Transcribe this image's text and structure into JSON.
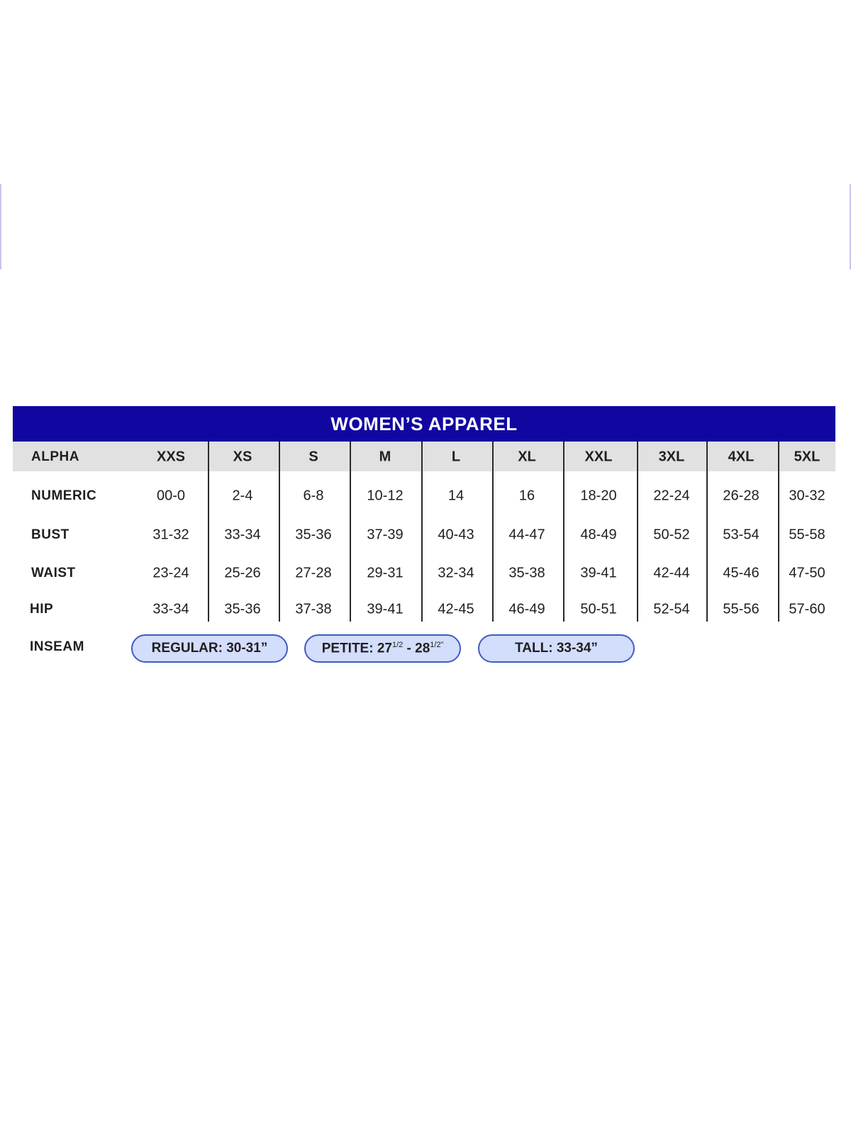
{
  "title": "WOMEN’S APPAREL",
  "columns": [
    "XXS",
    "XS",
    "S",
    "M",
    "L",
    "XL",
    "XXL",
    "3XL",
    "4XL",
    "5XL"
  ],
  "rows": [
    {
      "label": "ALPHA",
      "values": [
        "XXS",
        "XS",
        "S",
        "M",
        "L",
        "XL",
        "XXL",
        "3XL",
        "4XL",
        "5XL"
      ]
    },
    {
      "label": "NUMERIC",
      "values": [
        "00-0",
        "2-4",
        "6-8",
        "10-12",
        "14",
        "16",
        "18-20",
        "22-24",
        "26-28",
        "30-32"
      ]
    },
    {
      "label": "BUST",
      "values": [
        "31-32",
        "33-34",
        "35-36",
        "37-39",
        "40-43",
        "44-47",
        "48-49",
        "50-52",
        "53-54",
        "55-58"
      ]
    },
    {
      "label": "WAIST",
      "values": [
        "23-24",
        "25-26",
        "27-28",
        "29-31",
        "32-34",
        "35-38",
        "39-41",
        "42-44",
        "45-46",
        "47-50"
      ]
    },
    {
      "label": "HIP",
      "values": [
        "33-34",
        "35-36",
        "37-38",
        "39-41",
        "42-45",
        "46-49",
        "50-51",
        "52-54",
        "55-56",
        "57-60"
      ]
    }
  ],
  "inseam": {
    "label": "INSEAM",
    "regular": "REGULAR: 30-31”",
    "petite": {
      "prefix": "PETITE: 27",
      "sup1": "1/2",
      "mid": " - 28",
      "sup2": "1/2”"
    },
    "tall": "TALL: 33-34”"
  },
  "colors": {
    "header": "#1206a0",
    "alpha_row": "#e1e1e1",
    "pill_fill": "#d3ddfc",
    "pill_border": "#3f5bc4"
  }
}
